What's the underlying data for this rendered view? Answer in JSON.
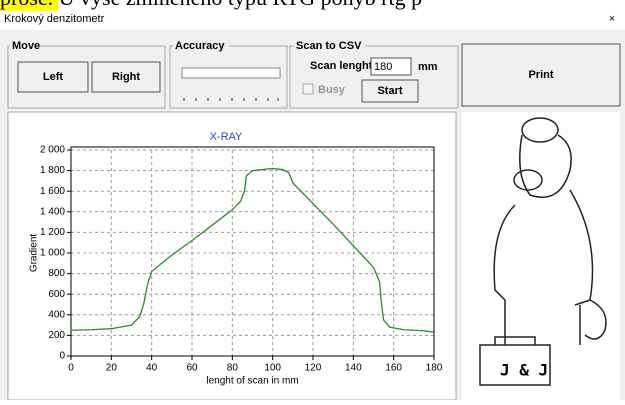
{
  "document_snippet": "přose. U výše zmíněného typu RTG pohyb rtg p",
  "window": {
    "title": "Krokový denzitometr",
    "close": "×"
  },
  "move": {
    "label": "Move",
    "left": "Left",
    "right": "Right"
  },
  "accuracy": {
    "label": "Accuracy"
  },
  "scan": {
    "label": "Scan to CSV",
    "length_label": "Scan lenght",
    "length_value": "180",
    "unit": "mm",
    "busy": "Busy",
    "start": "Start"
  },
  "print": "Print",
  "logo": "J & J",
  "chart_data": {
    "type": "line",
    "title": "X-RAY",
    "x_label": "lenght of scan in mm",
    "y_label": "Gradient",
    "x": [
      0,
      10,
      20,
      30,
      34,
      36,
      38,
      40,
      45,
      50,
      60,
      70,
      80,
      84,
      86,
      87,
      90,
      95,
      100,
      105,
      108,
      110,
      115,
      120,
      130,
      140,
      150,
      153,
      154,
      155,
      158,
      165,
      175,
      180
    ],
    "series": [
      {
        "name": "X-RAY",
        "color": "#2e8b2e",
        "values": [
          250,
          255,
          265,
          300,
          380,
          500,
          700,
          820,
          900,
          980,
          1120,
          1270,
          1420,
          1500,
          1600,
          1750,
          1800,
          1810,
          1820,
          1810,
          1780,
          1680,
          1580,
          1480,
          1280,
          1070,
          860,
          720,
          500,
          350,
          280,
          255,
          245,
          230
        ]
      }
    ],
    "xlim": [
      0,
      180
    ],
    "ylim": [
      0,
      2000
    ],
    "xticks": [
      0,
      20,
      40,
      60,
      80,
      100,
      120,
      140,
      160,
      180
    ],
    "yticks": [
      0,
      200,
      400,
      600,
      800,
      {
        "value": 1000,
        "label": "1 000"
      },
      {
        "value": 1200,
        "label": "1 200"
      },
      {
        "value": 1400,
        "label": "1 400"
      },
      {
        "value": 1600,
        "label": "1 600"
      },
      {
        "value": 1800,
        "label": "1 800"
      },
      {
        "value": 2000,
        "label": "2 000"
      }
    ],
    "grid": true
  }
}
